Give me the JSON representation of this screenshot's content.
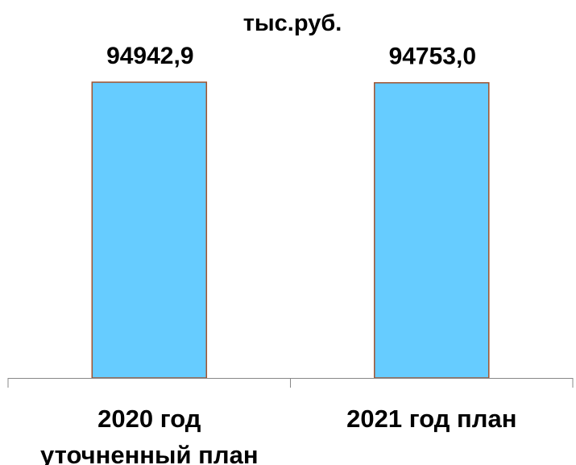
{
  "chart_data": {
    "type": "bar",
    "unit_label": "тыс.руб.",
    "categories": [
      [
        "2020 год",
        "уточненный план"
      ],
      [
        "2021 год план"
      ]
    ],
    "values": [
      94942.9,
      94753.0
    ],
    "value_labels": [
      "94942,9",
      "94753,0"
    ],
    "ylim": [
      0,
      94942.9
    ],
    "grid": false,
    "legend": "none",
    "colors": {
      "bar_fill": "#66CCFF",
      "bar_stroke": "#A0522D",
      "axis": "#888888"
    }
  }
}
